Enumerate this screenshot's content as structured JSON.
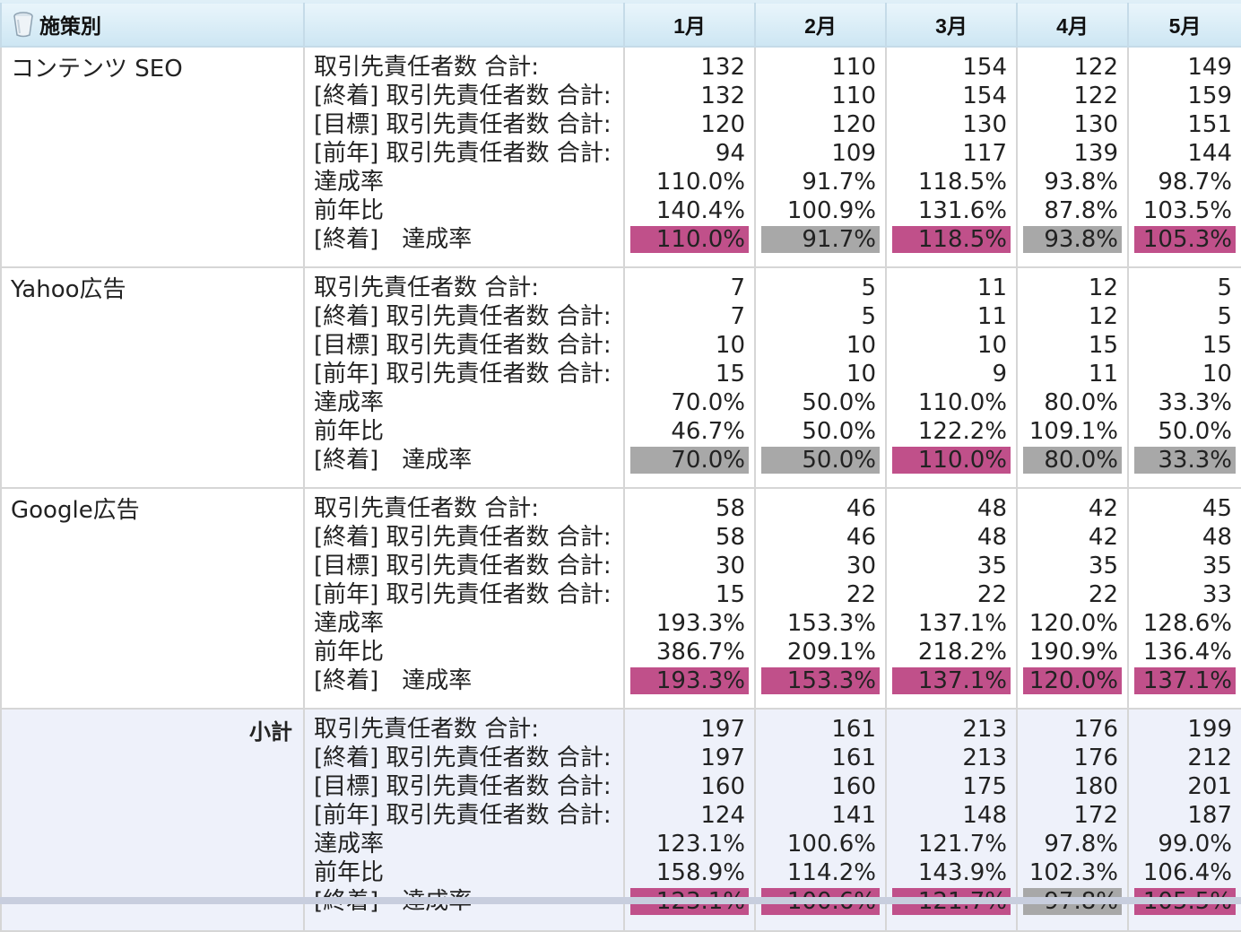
{
  "header": {
    "group_label": "施策別",
    "icon": "cup-icon",
    "months": [
      "1月",
      "2月",
      "3月",
      "4月",
      "5月"
    ]
  },
  "colors": {
    "achieved": "#c0508a",
    "not_achieved": "#a8a8a8",
    "header_bg": "#d6ecf7",
    "subtotal_bg": "#eef1fa"
  },
  "metric_labels": [
    "取引先責任者数 合計:",
    "[終着] 取引先責任者数 合計:",
    "[目標] 取引先責任者数 合計:",
    "[前年] 取引先責任者数 合計:",
    "達成率",
    "前年比",
    "[終着]　達成率"
  ],
  "groups": [
    {
      "name": "コンテンツ SEO",
      "months": [
        {
          "values": [
            "132",
            "132",
            "120",
            "94",
            "110.0%",
            "140.4%"
          ],
          "badge": "110.0%",
          "status": "achieved"
        },
        {
          "values": [
            "110",
            "110",
            "120",
            "109",
            "91.7%",
            "100.9%"
          ],
          "badge": "91.7%",
          "status": "not_achieved"
        },
        {
          "values": [
            "154",
            "154",
            "130",
            "117",
            "118.5%",
            "131.6%"
          ],
          "badge": "118.5%",
          "status": "achieved"
        },
        {
          "values": [
            "122",
            "122",
            "130",
            "139",
            "93.8%",
            "87.8%"
          ],
          "badge": "93.8%",
          "status": "not_achieved"
        },
        {
          "values": [
            "149",
            "159",
            "151",
            "144",
            "98.7%",
            "103.5%"
          ],
          "badge": "105.3%",
          "status": "achieved"
        }
      ]
    },
    {
      "name": "Yahoo広告",
      "months": [
        {
          "values": [
            "7",
            "7",
            "10",
            "15",
            "70.0%",
            "46.7%"
          ],
          "badge": "70.0%",
          "status": "not_achieved"
        },
        {
          "values": [
            "5",
            "5",
            "10",
            "10",
            "50.0%",
            "50.0%"
          ],
          "badge": "50.0%",
          "status": "not_achieved"
        },
        {
          "values": [
            "11",
            "11",
            "10",
            "9",
            "110.0%",
            "122.2%"
          ],
          "badge": "110.0%",
          "status": "achieved"
        },
        {
          "values": [
            "12",
            "12",
            "15",
            "11",
            "80.0%",
            "109.1%"
          ],
          "badge": "80.0%",
          "status": "not_achieved"
        },
        {
          "values": [
            "5",
            "5",
            "15",
            "10",
            "33.3%",
            "50.0%"
          ],
          "badge": "33.3%",
          "status": "not_achieved"
        }
      ]
    },
    {
      "name": "Google広告",
      "months": [
        {
          "values": [
            "58",
            "58",
            "30",
            "15",
            "193.3%",
            "386.7%"
          ],
          "badge": "193.3%",
          "status": "achieved"
        },
        {
          "values": [
            "46",
            "46",
            "30",
            "22",
            "153.3%",
            "209.1%"
          ],
          "badge": "153.3%",
          "status": "achieved"
        },
        {
          "values": [
            "48",
            "48",
            "35",
            "22",
            "137.1%",
            "218.2%"
          ],
          "badge": "137.1%",
          "status": "achieved"
        },
        {
          "values": [
            "42",
            "42",
            "35",
            "22",
            "120.0%",
            "190.9%"
          ],
          "badge": "120.0%",
          "status": "achieved"
        },
        {
          "values": [
            "45",
            "48",
            "35",
            "33",
            "128.6%",
            "136.4%"
          ],
          "badge": "137.1%",
          "status": "achieved"
        }
      ]
    }
  ],
  "subtotal": {
    "name": "小計",
    "months": [
      {
        "values": [
          "197",
          "197",
          "160",
          "124",
          "123.1%",
          "158.9%"
        ],
        "badge": "123.1%",
        "status": "achieved"
      },
      {
        "values": [
          "161",
          "161",
          "160",
          "141",
          "100.6%",
          "114.2%"
        ],
        "badge": "100.6%",
        "status": "achieved"
      },
      {
        "values": [
          "213",
          "213",
          "175",
          "148",
          "121.7%",
          "143.9%"
        ],
        "badge": "121.7%",
        "status": "achieved"
      },
      {
        "values": [
          "176",
          "176",
          "180",
          "172",
          "97.8%",
          "102.3%"
        ],
        "badge": "97.8%",
        "status": "not_achieved"
      },
      {
        "values": [
          "199",
          "212",
          "201",
          "187",
          "99.0%",
          "106.4%"
        ],
        "badge": "105.5%",
        "status": "achieved"
      }
    ]
  }
}
